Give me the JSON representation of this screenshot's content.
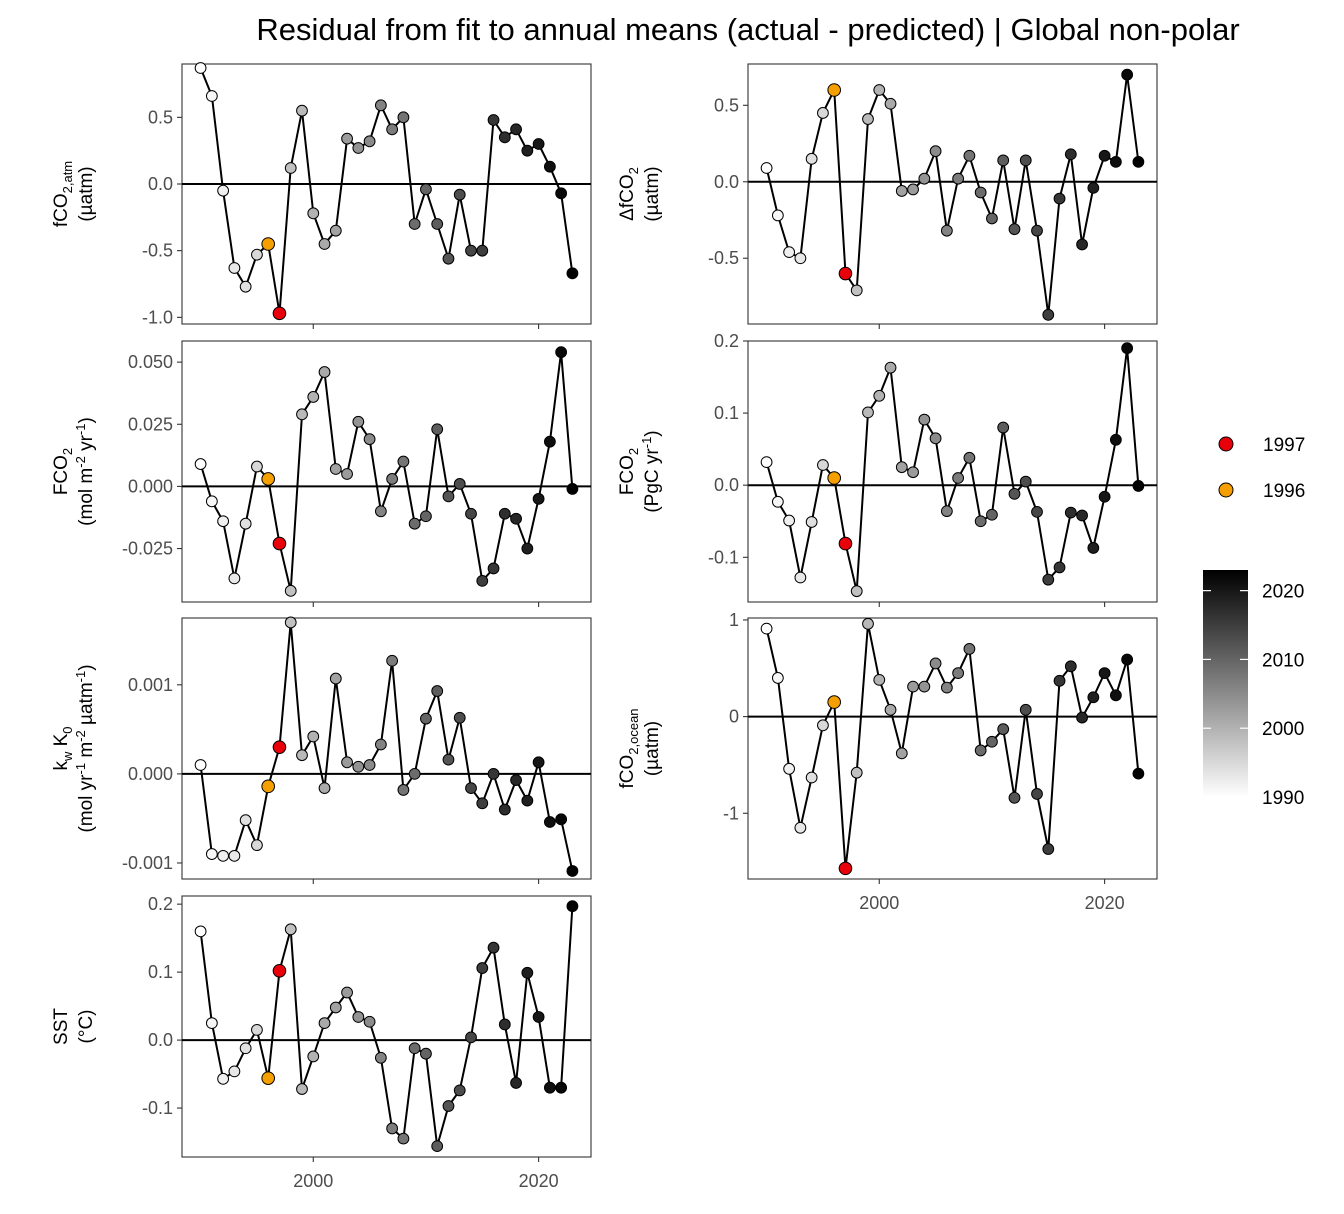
{
  "title": "Residual from fit to annual means (actual - predicted) | Global non-polar",
  "highlight": [
    {
      "year": 1997,
      "label": "1997",
      "color": "#e8000b"
    },
    {
      "year": 1996,
      "label": "1996",
      "color": "#f5a000"
    }
  ],
  "colorbar": {
    "ticks": [
      1990,
      2000,
      2010,
      2020
    ],
    "low_color": "#ffffff",
    "high_color": "#000000",
    "min": 1990,
    "max": 2023
  },
  "x_ticks": [
    2000,
    2020
  ],
  "years": [
    1990,
    1991,
    1992,
    1993,
    1994,
    1995,
    1996,
    1997,
    1998,
    1999,
    2000,
    2001,
    2002,
    2003,
    2004,
    2005,
    2006,
    2007,
    2008,
    2009,
    2010,
    2011,
    2012,
    2013,
    2014,
    2015,
    2016,
    2017,
    2018,
    2019,
    2020,
    2021,
    2022,
    2023
  ],
  "chart_data": [
    {
      "type": "line",
      "id": "fco2_atm",
      "ylabel": {
        "main": "fCO",
        "sub": "2,atm",
        "unit": "(µatm)"
      },
      "ylim": [
        -1.05,
        0.9
      ],
      "yticks": [
        -1.0,
        -0.5,
        0.0,
        0.5
      ],
      "tick_labels": [
        "-1.0",
        "-0.5",
        "0.0",
        "0.5"
      ],
      "values": [
        0.87,
        0.66,
        -0.05,
        -0.63,
        -0.77,
        -0.53,
        -0.45,
        -0.97,
        0.12,
        0.55,
        -0.22,
        -0.45,
        -0.35,
        0.34,
        0.27,
        0.32,
        0.59,
        0.41,
        0.5,
        -0.3,
        -0.04,
        -0.3,
        -0.56,
        -0.08,
        -0.5,
        -0.5,
        0.48,
        0.35,
        0.41,
        0.25,
        0.3,
        0.13,
        -0.07,
        -0.67
      ]
    },
    {
      "type": "line",
      "id": "delta_fco2",
      "ylabel": {
        "pre": "Δ",
        "main": "fCO",
        "sub": "2",
        "unit": "(µatm)"
      },
      "ylim": [
        -0.93,
        0.77
      ],
      "yticks": [
        -0.5,
        0.0,
        0.5
      ],
      "tick_labels": [
        "-0.5",
        "0.0",
        "0.5"
      ],
      "values": [
        0.09,
        -0.22,
        -0.46,
        -0.5,
        0.15,
        0.45,
        0.6,
        -0.6,
        -0.71,
        0.41,
        0.6,
        0.51,
        -0.06,
        -0.05,
        0.02,
        0.2,
        -0.32,
        0.02,
        0.17,
        -0.07,
        -0.24,
        0.14,
        -0.31,
        0.14,
        -0.32,
        -0.87,
        -0.11,
        0.18,
        -0.41,
        -0.04,
        0.17,
        0.13,
        0.7,
        0.13
      ]
    },
    {
      "type": "line",
      "id": "fco2_flux_area",
      "ylabel": {
        "main": "FCO",
        "sub": "2",
        "unit_main": "(mol m",
        "unit_sup1": "-2",
        "unit_mid": " yr",
        "unit_sup2": "-1",
        "unit_end": ")"
      },
      "ylim": [
        -0.0465,
        0.0585
      ],
      "yticks": [
        -0.025,
        0.0,
        0.025,
        0.05
      ],
      "tick_labels": [
        "-0.025",
        "0.000",
        "0.025",
        "0.050"
      ],
      "values": [
        0.009,
        -0.006,
        -0.014,
        -0.037,
        -0.015,
        0.008,
        0.003,
        -0.023,
        -0.042,
        0.029,
        0.036,
        0.046,
        0.007,
        0.005,
        0.026,
        0.019,
        -0.01,
        0.003,
        0.01,
        -0.015,
        -0.012,
        0.023,
        -0.004,
        0.001,
        -0.011,
        -0.038,
        -0.033,
        -0.011,
        -0.013,
        -0.025,
        -0.005,
        0.018,
        0.054,
        -0.001
      ]
    },
    {
      "type": "line",
      "id": "fco2_flux_total",
      "ylabel": {
        "main": "FCO",
        "sub": "2",
        "unit_main": "(PgC yr",
        "unit_sup1": "-1",
        "unit_end": ")"
      },
      "ylim": [
        -0.162,
        0.2
      ],
      "yticks": [
        -0.1,
        0.0,
        0.1,
        0.2
      ],
      "tick_labels": [
        "-0.1",
        "0.0",
        "0.1",
        "0.2"
      ],
      "values": [
        0.032,
        -0.023,
        -0.049,
        -0.128,
        -0.051,
        0.028,
        0.01,
        -0.081,
        -0.147,
        0.101,
        0.124,
        0.163,
        0.025,
        0.018,
        0.091,
        0.065,
        -0.036,
        0.01,
        0.038,
        -0.05,
        -0.041,
        0.08,
        -0.012,
        0.005,
        -0.037,
        -0.131,
        -0.114,
        -0.038,
        -0.042,
        -0.087,
        -0.016,
        0.063,
        0.19,
        -0.001
      ]
    },
    {
      "type": "line",
      "id": "kw_k0",
      "ylabel": {
        "line1_main": "k",
        "line1_sub1": "w",
        "line1_mid": " K",
        "line1_sub2": "0",
        "unit_main": "(mol yr",
        "unit_sup1": "-1",
        "unit_mid": " m",
        "unit_sup2": "-2",
        "unit_mid2": " µatm",
        "unit_sup3": "-1",
        "unit_end": ")"
      },
      "ylim": [
        -0.00118,
        0.00175
      ],
      "yticks": [
        -0.001,
        0.0,
        0.001
      ],
      "tick_labels": [
        "-0.001",
        "0.000",
        "0.001"
      ],
      "values": [
        0.0001,
        -0.0009,
        -0.00092,
        -0.00092,
        -0.00052,
        -0.0008,
        -0.00014,
        0.0003,
        0.0017,
        0.00021,
        0.00042,
        -0.00016,
        0.00107,
        0.00013,
        8e-05,
        0.0001,
        0.00033,
        0.00127,
        -0.00018,
        0.0,
        0.00062,
        0.00093,
        0.00016,
        0.00063,
        -0.00016,
        -0.00033,
        0.0,
        -0.0004,
        -7e-05,
        -0.0003,
        0.00013,
        -0.00054,
        -0.00051,
        -0.00109
      ]
    },
    {
      "type": "line",
      "id": "fco2_ocean",
      "ylabel": {
        "main": "fCO",
        "sub": "2,ocean",
        "unit": "(µatm)"
      },
      "ylim": [
        -1.68,
        1.02
      ],
      "yticks": [
        -1,
        0,
        1
      ],
      "tick_labels": [
        "-1",
        "0",
        "1"
      ],
      "values": [
        0.91,
        0.4,
        -0.54,
        -1.15,
        -0.63,
        -0.09,
        0.15,
        -1.57,
        -0.58,
        0.96,
        0.38,
        0.07,
        -0.38,
        0.31,
        0.31,
        0.55,
        0.3,
        0.45,
        0.7,
        -0.35,
        -0.26,
        -0.13,
        -0.84,
        0.07,
        -0.8,
        -1.37,
        0.37,
        0.52,
        -0.01,
        0.2,
        0.45,
        0.22,
        0.59,
        -0.59
      ]
    },
    {
      "type": "line",
      "id": "sst",
      "ylabel": {
        "main": "SST",
        "unit": "(°C)"
      },
      "ylim": [
        -0.172,
        0.212
      ],
      "yticks": [
        -0.1,
        0.0,
        0.1,
        0.2
      ],
      "tick_labels": [
        "-0.1",
        "0.0",
        "0.1",
        "0.2"
      ],
      "values": [
        0.16,
        0.025,
        -0.057,
        -0.046,
        -0.012,
        0.015,
        -0.056,
        0.102,
        0.163,
        -0.072,
        -0.024,
        0.025,
        0.048,
        0.07,
        0.034,
        0.027,
        -0.026,
        -0.13,
        -0.145,
        -0.012,
        -0.02,
        -0.156,
        -0.097,
        -0.074,
        0.004,
        0.106,
        0.136,
        0.023,
        -0.063,
        0.099,
        0.034,
        -0.07,
        -0.07,
        0.197
      ]
    }
  ]
}
